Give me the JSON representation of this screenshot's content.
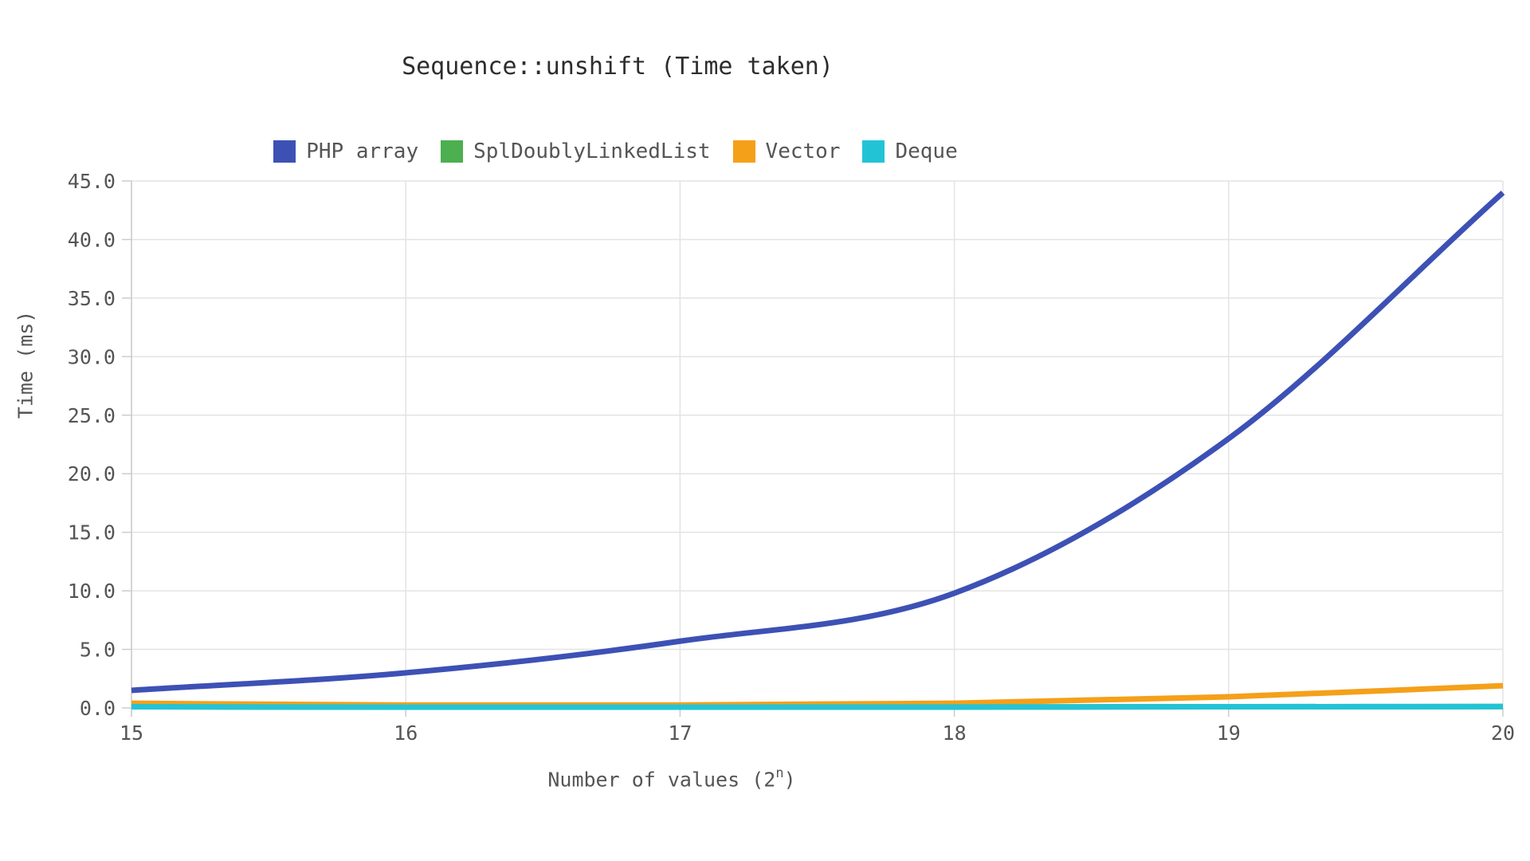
{
  "chart_data": {
    "type": "line",
    "title": "Sequence::unshift (Time taken)",
    "xlabel": "Number of values (2ⁿ)",
    "xlabel_parts": {
      "main": "Number of values (2",
      "sup": "n",
      "close": ")"
    },
    "ylabel": "Time (ms)",
    "x": [
      15,
      16,
      17,
      18,
      19,
      20
    ],
    "xtick_labels": [
      "15",
      "16",
      "17",
      "18",
      "19",
      "20"
    ],
    "yticks": [
      0,
      5,
      10,
      15,
      20,
      25,
      30,
      35,
      40,
      45
    ],
    "ylim": [
      0,
      45
    ],
    "grid": true,
    "legend_position": "top-center",
    "series": [
      {
        "name": "PHP array",
        "color": "#3d51b5",
        "values": [
          1.5,
          3.0,
          5.7,
          9.8,
          23.0,
          44.0
        ]
      },
      {
        "name": "SplDoublyLinkedList",
        "color": "#4caf50",
        "values": [
          0.1,
          0.07,
          0.07,
          0.08,
          0.1,
          0.12
        ]
      },
      {
        "name": "Vector",
        "color": "#f5a019",
        "values": [
          0.4,
          0.25,
          0.25,
          0.4,
          0.95,
          1.9
        ]
      },
      {
        "name": "Deque",
        "color": "#23c3d6",
        "values": [
          0.1,
          0.07,
          0.07,
          0.08,
          0.1,
          0.12
        ]
      }
    ],
    "axis_colors": {
      "grid": "#e3e3e3",
      "axis": "#cccccc",
      "tick_text": "#555555",
      "title_text": "#2d2d2d"
    }
  }
}
